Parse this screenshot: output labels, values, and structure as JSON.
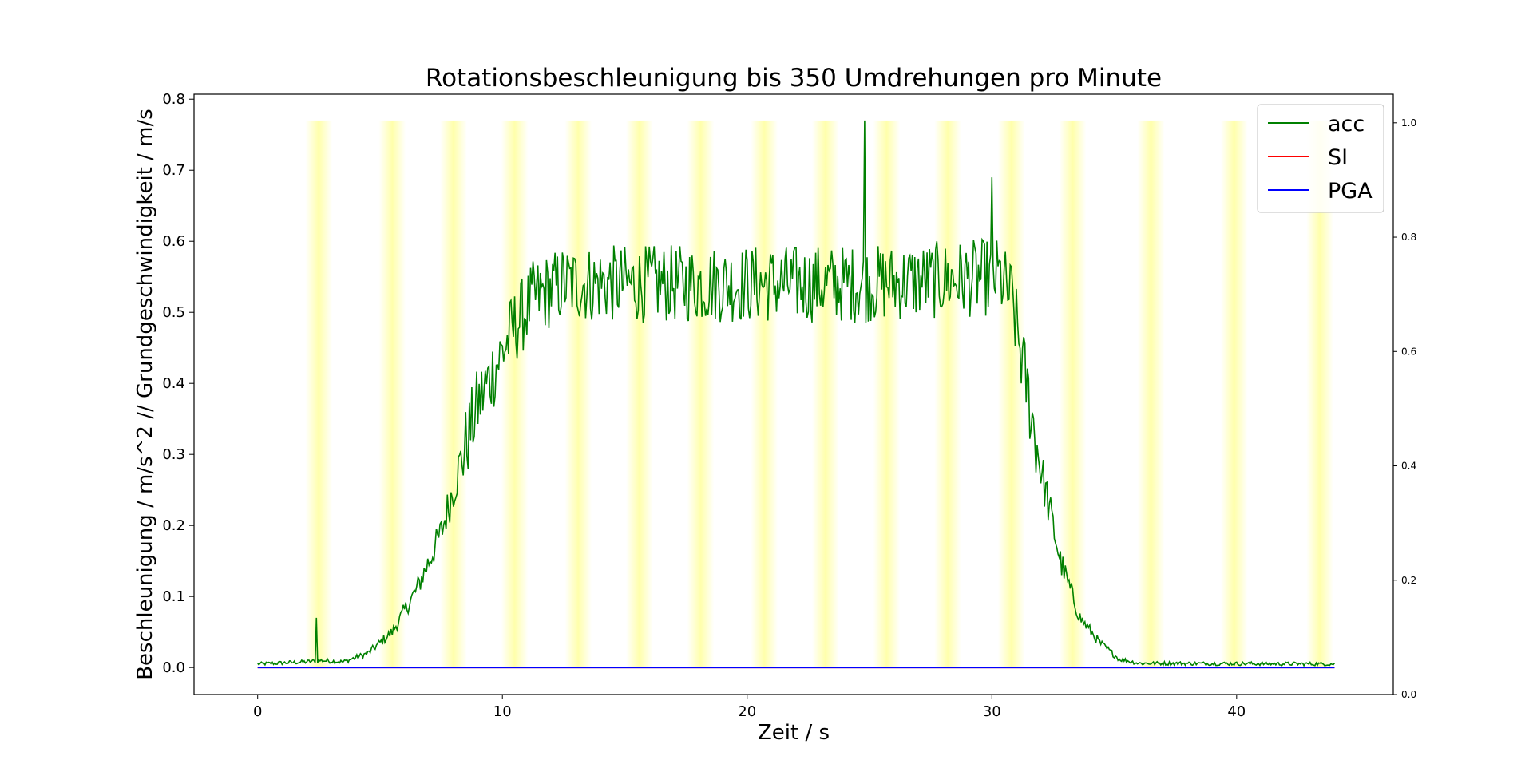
{
  "chart_data": {
    "type": "line",
    "title": "Rotationsbeschleunigung bis 350 Umdrehungen pro Minute",
    "xlabel": "Zeit / s",
    "ylabel": "Beschleunigung / m/s^2 // Grundgeschwindigkeit / m/s",
    "xlim": [
      -2.6,
      46.4
    ],
    "ylim": [
      -0.038,
      0.807
    ],
    "y2lim": [
      0.0,
      1.05
    ],
    "x_ticks": [
      0,
      10,
      20,
      30,
      40
    ],
    "y_ticks": [
      0.0,
      0.1,
      0.2,
      0.3,
      0.4,
      0.5,
      0.6,
      0.7,
      0.8
    ],
    "y2_ticks": [
      0.0,
      0.2,
      0.4,
      0.6,
      0.8,
      1.0
    ],
    "grid": false,
    "legend_position": "top-right",
    "highlight_bands": {
      "color": "#ffff66",
      "top": 0.77,
      "centers": [
        2.5,
        5.5,
        8.0,
        10.5,
        13.1,
        15.6,
        18.1,
        20.7,
        23.2,
        25.7,
        28.2,
        30.8,
        33.3,
        36.5,
        39.9,
        43.4
      ]
    },
    "series": [
      {
        "name": "acc",
        "color": "#008000",
        "envelope": [
          [
            0,
            0.005
          ],
          [
            2.0,
            0.008
          ],
          [
            2.6,
            0.01
          ],
          [
            3.5,
            0.008
          ],
          [
            4.5,
            0.02
          ],
          [
            5.5,
            0.05
          ],
          [
            6.5,
            0.11
          ],
          [
            7.5,
            0.19
          ],
          [
            8.3,
            0.29
          ],
          [
            9.0,
            0.37
          ],
          [
            9.8,
            0.43
          ],
          [
            10.5,
            0.48
          ],
          [
            11.3,
            0.52
          ],
          [
            12.5,
            0.54
          ],
          [
            20.0,
            0.54
          ],
          [
            25.0,
            0.54
          ],
          [
            30.3,
            0.55
          ],
          [
            30.8,
            0.52
          ],
          [
            31.3,
            0.42
          ],
          [
            32.0,
            0.28
          ],
          [
            32.8,
            0.15
          ],
          [
            33.6,
            0.07
          ],
          [
            34.4,
            0.035
          ],
          [
            35.2,
            0.012
          ],
          [
            36.0,
            0.006
          ],
          [
            44.0,
            0.005
          ]
        ],
        "spikes": [
          [
            2.4,
            0.07
          ],
          [
            24.8,
            0.77
          ],
          [
            30.0,
            0.69
          ]
        ]
      },
      {
        "name": "SI",
        "color": "#ff0000",
        "x": [
          0,
          44
        ],
        "y": [
          0.0,
          0.0
        ]
      },
      {
        "name": "PGA",
        "color": "#0000ff",
        "x": [
          0,
          44
        ],
        "y": [
          0.0,
          0.0
        ]
      }
    ]
  }
}
